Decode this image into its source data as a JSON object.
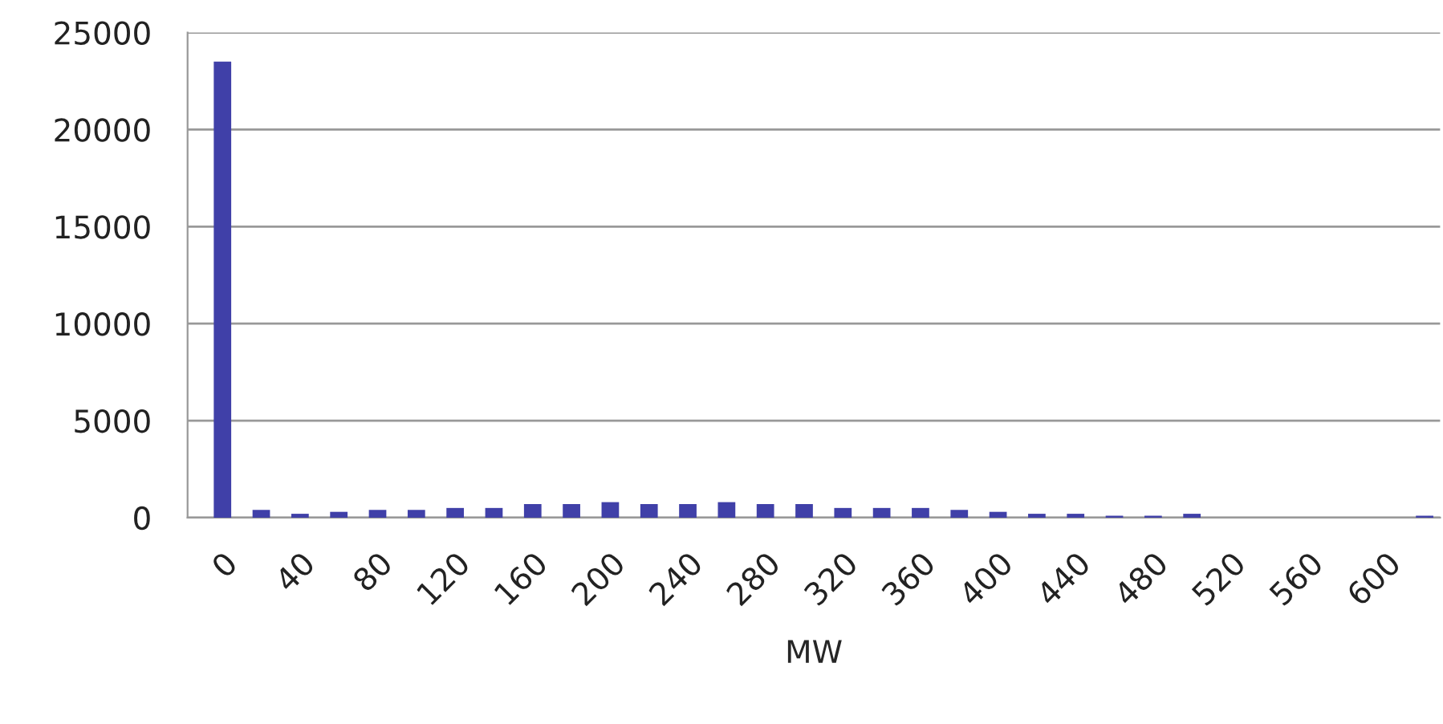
{
  "chart_data": {
    "type": "bar",
    "xlabel": "MW",
    "categories": [
      "0",
      null,
      "40",
      null,
      "80",
      null,
      "120",
      null,
      "160",
      null,
      "200",
      null,
      "240",
      null,
      "280",
      null,
      "320",
      null,
      "360",
      null,
      "400",
      null,
      "440",
      null,
      "480",
      null,
      "520",
      null,
      "560",
      null,
      "600",
      null
    ],
    "values": [
      23500,
      400,
      200,
      300,
      400,
      400,
      500,
      500,
      700,
      700,
      800,
      700,
      700,
      800,
      700,
      700,
      500,
      500,
      500,
      400,
      300,
      200,
      200,
      100,
      100,
      200,
      null,
      null,
      null,
      null,
      null,
      100
    ],
    "color": "#4040a8",
    "ylim": [
      0,
      25000
    ],
    "yticks": [
      0,
      5000,
      10000,
      15000,
      20000,
      25000
    ],
    "grid": "y",
    "legend": false
  }
}
